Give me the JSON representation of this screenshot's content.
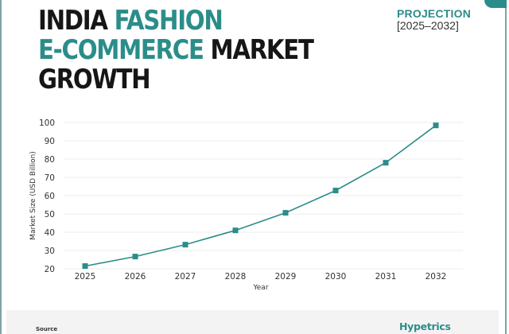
{
  "header": {
    "title_line1_dark": "INDIA",
    "title_line1_accent": "FASHION",
    "title_line2_accent": "E-COMMERCE",
    "title_line2_dark": "MARKET",
    "title_line3_dark": "GROWTH",
    "projection_label": "PROJECTION",
    "projection_range": "[2025–2032]"
  },
  "footer": {
    "source_label": "Source",
    "brand": "Hypetrics"
  },
  "colors": {
    "accent": "#2b8d8a",
    "title_dark": "#161616",
    "gridline": "#ececec",
    "footer_bg": "#f3f3f3"
  },
  "chart_data": {
    "type": "line",
    "title": "INDIA FASHION E-COMMERCE MARKET GROWTH",
    "subtitle": "PROJECTION [2025–2032]",
    "xlabel": "Year",
    "ylabel": "Market Size (USD Billion)",
    "categories": [
      "2025",
      "2026",
      "2027",
      "2028",
      "2029",
      "2030",
      "2031",
      "2032"
    ],
    "series": [
      {
        "name": "Market Size (USD Billion)",
        "values": [
          21.5,
          26.7,
          33.2,
          41.0,
          50.6,
          62.8,
          78.0,
          98.4
        ],
        "color": "#2b8d8a",
        "marker": "square"
      }
    ],
    "yticks": [
      20,
      30,
      40,
      50,
      60,
      70,
      80,
      90,
      100
    ],
    "ylim": [
      20,
      100
    ],
    "grid": true,
    "legend": "none"
  }
}
